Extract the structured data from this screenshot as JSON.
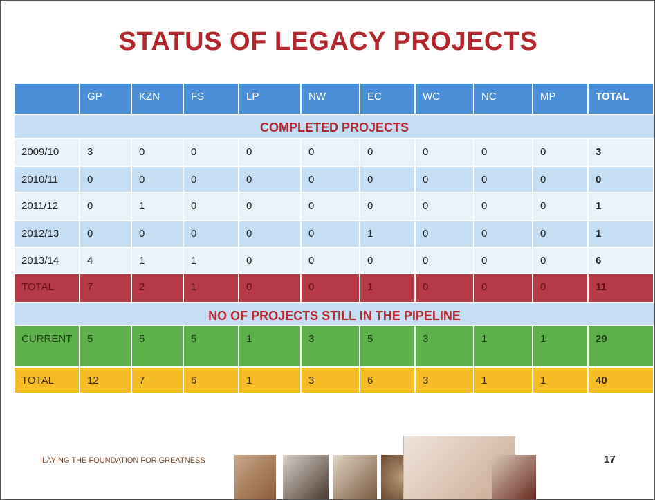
{
  "title": "STATUS OF LEGACY PROJECTS",
  "table": {
    "header": [
      "",
      "GP",
      "KZN",
      "FS",
      "LP",
      "NW",
      "EC",
      "WC",
      "NC",
      "MP",
      "TOTAL"
    ],
    "sections": [
      {
        "heading": "COMPLETED PROJECTS",
        "rows": [
          [
            "2009/10",
            3,
            0,
            0,
            0,
            0,
            0,
            0,
            0,
            0,
            3
          ],
          [
            "2010/11",
            0,
            0,
            0,
            0,
            0,
            0,
            0,
            0,
            0,
            0
          ],
          [
            "2011/12",
            0,
            1,
            0,
            0,
            0,
            0,
            0,
            0,
            0,
            1
          ],
          [
            "2012/13",
            0,
            0,
            0,
            0,
            0,
            1,
            0,
            0,
            0,
            1
          ],
          [
            "2013/14",
            4,
            1,
            1,
            0,
            0,
            0,
            0,
            0,
            0,
            6
          ],
          [
            "TOTAL",
            7,
            2,
            1,
            0,
            0,
            1,
            0,
            0,
            0,
            11
          ]
        ]
      },
      {
        "heading": "NO OF PROJECTS STILL IN THE PIPELINE",
        "rows": [
          [
            "CURRENT",
            5,
            5,
            5,
            1,
            3,
            5,
            3,
            1,
            1,
            29
          ],
          [
            "TOTAL",
            12,
            7,
            6,
            1,
            3,
            6,
            3,
            1,
            1,
            40
          ]
        ]
      }
    ]
  },
  "footer": {
    "tagline": "LAYING THE FOUNDATION FOR GREATNESS",
    "page": 17
  }
}
